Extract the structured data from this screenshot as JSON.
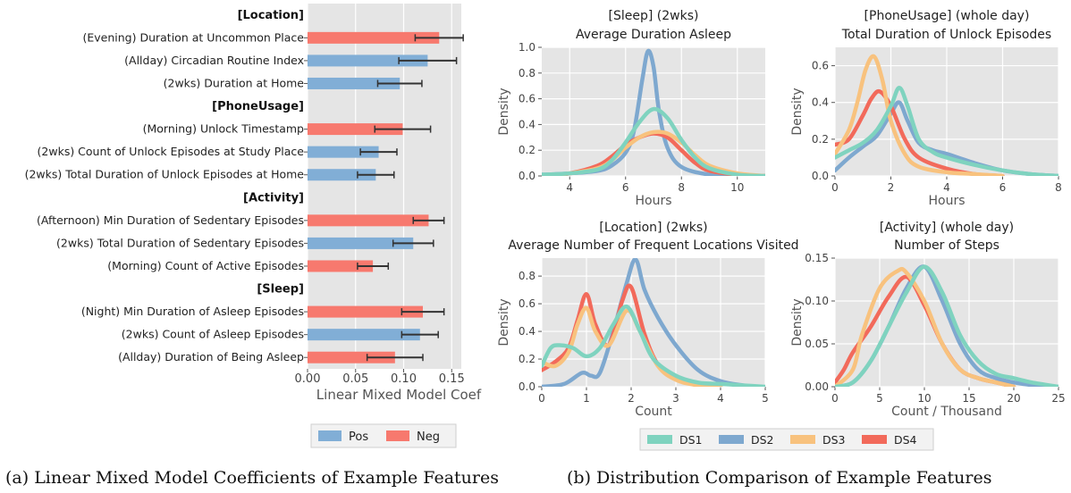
{
  "captions": {
    "left": "(a) Linear Mixed Model Coefficients of Example Features",
    "right": "(b) Distribution Comparison of Example Features"
  },
  "colors": {
    "pos": "#81aed6",
    "neg": "#f7796e",
    "DS1": "#7fd3bf",
    "DS2": "#7ea8cf",
    "DS3": "#f8c27e",
    "DS4": "#f26a5b",
    "panel_bg": "#e5e5e5"
  },
  "chart_data": [
    {
      "type": "bar",
      "orientation": "horizontal",
      "xlabel": "Linear Mixed Model Coef",
      "xlim": [
        0,
        0.16
      ],
      "xticks": [
        "0.00",
        "0.05",
        "0.10",
        "0.15"
      ],
      "legend": {
        "position": "bottom",
        "entries": [
          "Pos",
          "Neg"
        ]
      },
      "rows": [
        {
          "kind": "header",
          "label": "[Location]"
        },
        {
          "kind": "bar",
          "label": "(Evening) Duration at Uncommon Place",
          "value": 0.137,
          "err": 0.025,
          "sign": "neg"
        },
        {
          "kind": "bar",
          "label": "(Allday) Circadian Routine Index",
          "value": 0.125,
          "err": 0.03,
          "sign": "pos"
        },
        {
          "kind": "bar",
          "label": "(2wks) Duration at Home",
          "value": 0.096,
          "err": 0.023,
          "sign": "pos"
        },
        {
          "kind": "header",
          "label": "[PhoneUsage]"
        },
        {
          "kind": "bar",
          "label": "(Morning) Unlock Timestamp",
          "value": 0.099,
          "err": 0.029,
          "sign": "neg"
        },
        {
          "kind": "bar",
          "label": "(2wks) Count of Unlock Episodes at Study Place",
          "value": 0.074,
          "err": 0.019,
          "sign": "pos"
        },
        {
          "kind": "bar",
          "label": "(2wks) Total Duration of Unlock Episodes at Home",
          "value": 0.071,
          "err": 0.019,
          "sign": "pos"
        },
        {
          "kind": "header",
          "label": "[Activity]"
        },
        {
          "kind": "bar",
          "label": "(Afternoon) Min Duration of Sedentary Episodes",
          "value": 0.126,
          "err": 0.016,
          "sign": "neg"
        },
        {
          "kind": "bar",
          "label": "(2wks) Total Duration of Sedentary Episodes",
          "value": 0.11,
          "err": 0.021,
          "sign": "pos"
        },
        {
          "kind": "bar",
          "label": "(Morning) Count of Active Episodes",
          "value": 0.068,
          "err": 0.016,
          "sign": "neg"
        },
        {
          "kind": "header",
          "label": "[Sleep]"
        },
        {
          "kind": "bar",
          "label": "(Night) Min Duration of Asleep Episodes",
          "value": 0.12,
          "err": 0.022,
          "sign": "neg"
        },
        {
          "kind": "bar",
          "label": "(2wks) Count of Asleep Episodes",
          "value": 0.117,
          "err": 0.019,
          "sign": "pos"
        },
        {
          "kind": "bar",
          "label": "(Allday) Duration of Being Asleep",
          "value": 0.091,
          "err": 0.029,
          "sign": "neg"
        }
      ]
    },
    {
      "type": "line",
      "panel": "sleep",
      "title": [
        "[Sleep] (2wks)",
        "Average Duration Asleep"
      ],
      "xlabel": "Hours",
      "ylabel": "Density",
      "xlim": [
        3,
        11
      ],
      "ylim": [
        0,
        1.0
      ],
      "xticks": [
        4,
        6,
        8,
        10
      ],
      "yticks": [
        "0.0",
        "0.2",
        "0.4",
        "0.6",
        "0.8",
        "1.0"
      ],
      "series": [
        {
          "name": "DS1",
          "x": [
            3,
            4,
            5,
            5.5,
            6,
            6.5,
            7,
            7.5,
            8,
            8.5,
            9,
            10,
            11
          ],
          "y": [
            0.01,
            0.02,
            0.05,
            0.12,
            0.26,
            0.42,
            0.52,
            0.45,
            0.28,
            0.14,
            0.06,
            0.01,
            0
          ]
        },
        {
          "name": "DS2",
          "x": [
            3,
            4,
            5,
            5.5,
            6,
            6.3,
            6.6,
            6.8,
            7,
            7.2,
            7.5,
            8,
            9,
            10,
            11
          ],
          "y": [
            0.01,
            0.02,
            0.04,
            0.08,
            0.18,
            0.35,
            0.75,
            0.97,
            0.85,
            0.5,
            0.22,
            0.07,
            0.01,
            0,
            0
          ]
        },
        {
          "name": "DS3",
          "x": [
            3,
            4,
            5,
            5.5,
            6,
            6.5,
            7,
            7.5,
            8,
            8.5,
            9,
            10,
            11
          ],
          "y": [
            0,
            0.02,
            0.06,
            0.12,
            0.22,
            0.3,
            0.34,
            0.33,
            0.26,
            0.16,
            0.08,
            0.02,
            0
          ]
        },
        {
          "name": "DS4",
          "x": [
            3,
            4,
            5,
            5.5,
            6,
            6.5,
            7,
            7.5,
            8,
            8.5,
            9,
            10,
            11
          ],
          "y": [
            0,
            0.02,
            0.08,
            0.15,
            0.24,
            0.3,
            0.33,
            0.3,
            0.2,
            0.1,
            0.04,
            0.01,
            0
          ]
        }
      ]
    },
    {
      "type": "line",
      "panel": "phone",
      "title": [
        "[PhoneUsage] (whole day)",
        "Total Duration of Unlock Episodes"
      ],
      "xlabel": "Hours",
      "ylabel": "Density",
      "xlim": [
        0,
        8
      ],
      "ylim": [
        0,
        0.7
      ],
      "xticks": [
        0,
        2,
        4,
        6,
        8
      ],
      "yticks": [
        "0.0",
        "0.2",
        "0.4",
        "0.6"
      ],
      "series": [
        {
          "name": "DS1",
          "x": [
            0,
            0.5,
            1,
            1.5,
            2,
            2.3,
            2.6,
            3,
            3.5,
            4,
            5,
            6,
            7,
            8
          ],
          "y": [
            0.1,
            0.14,
            0.18,
            0.25,
            0.38,
            0.48,
            0.38,
            0.2,
            0.13,
            0.1,
            0.06,
            0.03,
            0.01,
            0
          ]
        },
        {
          "name": "DS2",
          "x": [
            0,
            0.5,
            1,
            1.5,
            2,
            2.3,
            2.6,
            3,
            3.5,
            4,
            5,
            6,
            7,
            8
          ],
          "y": [
            0.03,
            0.1,
            0.16,
            0.22,
            0.34,
            0.4,
            0.3,
            0.18,
            0.14,
            0.12,
            0.07,
            0.03,
            0.01,
            0
          ]
        },
        {
          "name": "DS3",
          "x": [
            0,
            0.5,
            0.8,
            1.1,
            1.4,
            1.7,
            2,
            2.5,
            3,
            4,
            5,
            6
          ],
          "y": [
            0.12,
            0.25,
            0.4,
            0.58,
            0.65,
            0.52,
            0.3,
            0.12,
            0.05,
            0.02,
            0.01,
            0
          ]
        },
        {
          "name": "DS4",
          "x": [
            0,
            0.5,
            1,
            1.3,
            1.6,
            2,
            2.5,
            3,
            4,
            5,
            6
          ],
          "y": [
            0.17,
            0.2,
            0.33,
            0.42,
            0.46,
            0.38,
            0.2,
            0.1,
            0.04,
            0.01,
            0
          ]
        }
      ]
    },
    {
      "type": "line",
      "panel": "location",
      "title": [
        "[Location] (2wks)",
        "Average Number of Frequent Locations Visited"
      ],
      "xlabel": "Count",
      "ylabel": "Density",
      "xlim": [
        0,
        5
      ],
      "ylim": [
        0,
        0.93
      ],
      "xticks": [
        0,
        1,
        2,
        3,
        4,
        5
      ],
      "yticks": [
        "0.0",
        "0.2",
        "0.4",
        "0.6",
        "0.8"
      ],
      "series": [
        {
          "name": "DS1",
          "x": [
            0,
            0.2,
            0.4,
            0.7,
            1,
            1.3,
            1.6,
            1.9,
            2.2,
            2.5,
            3,
            3.5,
            4,
            4.5,
            5
          ],
          "y": [
            0.15,
            0.28,
            0.3,
            0.28,
            0.22,
            0.28,
            0.45,
            0.58,
            0.4,
            0.2,
            0.08,
            0.03,
            0.02,
            0.01,
            0
          ]
        },
        {
          "name": "DS2",
          "x": [
            0,
            0.5,
            0.9,
            1.1,
            1.3,
            1.6,
            1.9,
            2.1,
            2.3,
            2.6,
            3,
            3.5,
            4,
            4.5,
            4.8
          ],
          "y": [
            0,
            0.02,
            0.1,
            0.08,
            0.1,
            0.4,
            0.75,
            0.92,
            0.7,
            0.5,
            0.3,
            0.12,
            0.04,
            0.01,
            0
          ]
        },
        {
          "name": "DS3",
          "x": [
            0,
            0.3,
            0.6,
            0.8,
            1,
            1.2,
            1.5,
            1.9,
            2.2,
            2.6,
            3,
            3.5,
            4
          ],
          "y": [
            0.18,
            0.15,
            0.25,
            0.45,
            0.57,
            0.4,
            0.3,
            0.55,
            0.4,
            0.15,
            0.05,
            0.01,
            0
          ]
        },
        {
          "name": "DS4",
          "x": [
            0,
            0.3,
            0.6,
            0.8,
            1,
            1.2,
            1.5,
            1.8,
            2,
            2.3,
            2.6,
            3,
            3.5,
            4
          ],
          "y": [
            0.12,
            0.18,
            0.28,
            0.48,
            0.67,
            0.45,
            0.3,
            0.62,
            0.72,
            0.38,
            0.16,
            0.06,
            0.01,
            0
          ]
        }
      ]
    },
    {
      "type": "line",
      "panel": "activity",
      "title": [
        "[Activity] (whole day)",
        "Number of Steps"
      ],
      "xlabel": "Count / Thousand",
      "ylabel": "Density",
      "xlim": [
        0,
        25
      ],
      "ylim": [
        0,
        0.15
      ],
      "xticks": [
        0,
        5,
        10,
        15,
        20,
        25
      ],
      "yticks": [
        "0.00",
        "0.05",
        "0.10",
        "0.15"
      ],
      "series": [
        {
          "name": "DS1",
          "x": [
            0,
            2,
            4,
            6,
            8,
            10,
            12,
            14,
            16,
            18,
            20,
            22,
            25
          ],
          "y": [
            0,
            0.005,
            0.03,
            0.07,
            0.11,
            0.14,
            0.11,
            0.06,
            0.03,
            0.015,
            0.01,
            0.005,
            0
          ]
        },
        {
          "name": "DS2",
          "x": [
            0,
            2,
            4,
            6,
            8,
            10,
            12,
            14,
            16,
            18,
            20,
            22,
            25
          ],
          "y": [
            0,
            0.005,
            0.03,
            0.07,
            0.115,
            0.14,
            0.1,
            0.05,
            0.02,
            0.01,
            0.005,
            0.002,
            0
          ]
        },
        {
          "name": "DS3",
          "x": [
            0,
            2,
            3,
            5,
            7,
            8,
            10,
            12,
            14,
            16,
            18,
            20
          ],
          "y": [
            0,
            0.02,
            0.06,
            0.115,
            0.135,
            0.133,
            0.1,
            0.05,
            0.02,
            0.01,
            0.005,
            0
          ]
        },
        {
          "name": "DS4",
          "x": [
            0,
            1,
            2,
            4,
            6,
            8,
            10,
            12,
            14,
            16,
            18,
            20
          ],
          "y": [
            0.005,
            0.02,
            0.04,
            0.07,
            0.105,
            0.128,
            0.095,
            0.05,
            0.02,
            0.01,
            0.005,
            0
          ]
        }
      ]
    }
  ],
  "distribution_legend": {
    "position": "bottom",
    "entries": [
      "DS1",
      "DS2",
      "DS3",
      "DS4"
    ]
  }
}
